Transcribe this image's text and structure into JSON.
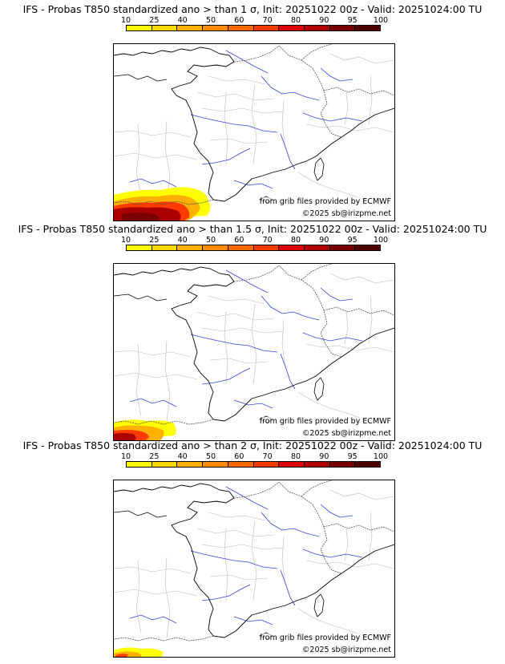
{
  "legend": {
    "ticks": [
      "10",
      "25",
      "40",
      "50",
      "60",
      "70",
      "80",
      "90",
      "95",
      "100"
    ],
    "colors": [
      "#ffff00",
      "#ffd700",
      "#ffb000",
      "#ff8c00",
      "#ff6a00",
      "#ff3b00",
      "#dd0000",
      "#aa0000",
      "#7a0000",
      "#4d0000"
    ]
  },
  "panels": [
    {
      "title": "IFS - Probas T850  standardized ano > than 1 σ, Init: 20251022 00z - Valid: 20251024:00 TU",
      "credit": "from grib files provided by ECMWF",
      "copyright": "©2025 sb@irizpme.net",
      "intensity": "high"
    },
    {
      "title": "IFS - Probas T850  standardized ano > than 1.5 σ, Init: 20251022 00z - Valid: 20251024:00 TU",
      "credit": "from grib files provided by ECMWF",
      "copyright": "©2025 sb@irizpme.net",
      "intensity": "medium"
    },
    {
      "title": "IFS - Probas T850  standardized ano > than 2 σ, Init: 20251022 00z - Valid: 20251024:00 TU",
      "credit": "from grib files provided by ECMWF",
      "copyright": "©2025 sb@irizpme.net",
      "intensity": "low"
    }
  ]
}
